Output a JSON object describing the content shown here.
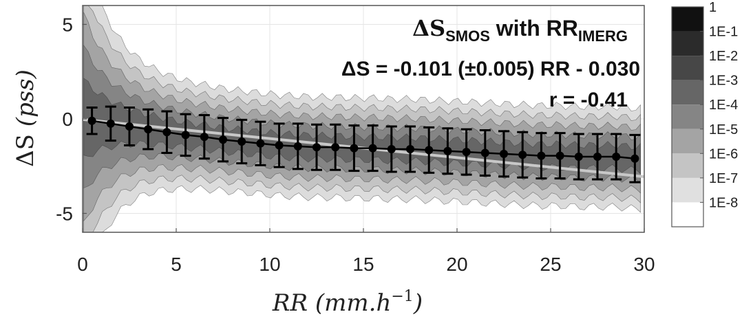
{
  "chart_data": {
    "type": "scatter",
    "title": {
      "delta": "ΔS",
      "sub1": "SMOS",
      "with": " with RR",
      "sub2": "IMERG"
    },
    "equation": "ΔS = -0.101 (±0.005) RR - 0.030",
    "correlation": "r = -0.41",
    "xlabel": {
      "main": "RR",
      "unit_open": " (mm.h",
      "exp": "−1",
      "unit_close": ")"
    },
    "ylabel": {
      "main": "ΔS",
      "unit": " (pss)"
    },
    "xlim": [
      0,
      30
    ],
    "ylim": [
      -6,
      6
    ],
    "x_ticks": [
      "0",
      "5",
      "10",
      "15",
      "20",
      "25",
      "30"
    ],
    "y_ticks": [
      "5",
      "0",
      "-5"
    ],
    "grid": true,
    "fit": {
      "slope": -0.101,
      "intercept": -0.03
    },
    "bins_x": [
      0.5,
      1.5,
      2.5,
      3.5,
      4.5,
      5.5,
      6.5,
      7.5,
      8.5,
      9.5,
      10.5,
      11.5,
      12.5,
      13.5,
      14.5,
      15.5,
      16.5,
      17.5,
      18.5,
      19.5,
      20.5,
      21.5,
      22.5,
      23.5,
      24.5,
      25.5,
      26.5,
      27.5,
      28.5,
      29.5
    ],
    "bins_mean": [
      -0.1,
      -0.25,
      -0.4,
      -0.55,
      -0.7,
      -0.85,
      -0.95,
      -1.1,
      -1.2,
      -1.3,
      -1.4,
      -1.45,
      -1.5,
      -1.5,
      -1.55,
      -1.55,
      -1.6,
      -1.6,
      -1.65,
      -1.7,
      -1.75,
      -1.8,
      -1.85,
      -1.9,
      -1.95,
      -1.95,
      -2.0,
      -2.0,
      -2.0,
      -2.1
    ],
    "bins_std": [
      0.7,
      0.9,
      1.0,
      1.05,
      1.1,
      1.1,
      1.15,
      1.15,
      1.15,
      1.15,
      1.15,
      1.2,
      1.2,
      1.2,
      1.2,
      1.2,
      1.2,
      1.2,
      1.2,
      1.2,
      1.2,
      1.2,
      1.2,
      1.2,
      1.2,
      1.2,
      1.2,
      1.2,
      1.2,
      1.25
    ],
    "colorbar": {
      "label_top": "1",
      "labels": [
        "1E-1",
        "1E-2",
        "1E-3",
        "1E-4",
        "1E-5",
        "1E-6",
        "1E-7",
        "1E-8"
      ],
      "colors": [
        "#111111",
        "#2b2b2b",
        "#474747",
        "#666666",
        "#858585",
        "#a4a4a4",
        "#c4c4c4",
        "#e0e0e0",
        "#ffffff"
      ]
    }
  }
}
